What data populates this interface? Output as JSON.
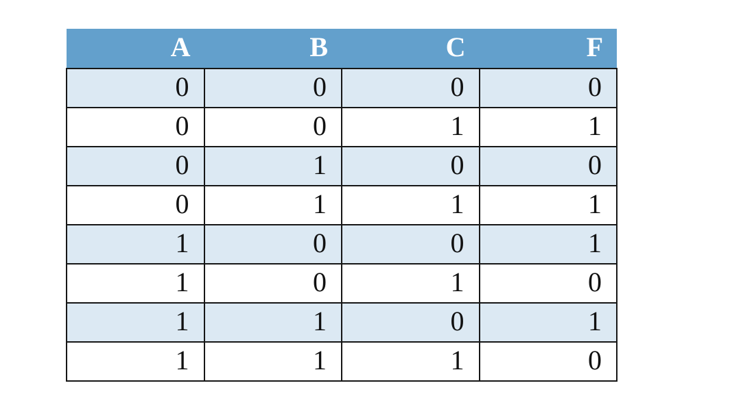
{
  "table": {
    "name": "truth-table",
    "columns": [
      "A",
      "B",
      "C",
      "F"
    ],
    "rows": [
      [
        "0",
        "0",
        "0",
        "0"
      ],
      [
        "0",
        "0",
        "1",
        "1"
      ],
      [
        "0",
        "1",
        "0",
        "0"
      ],
      [
        "0",
        "1",
        "1",
        "1"
      ],
      [
        "1",
        "0",
        "0",
        "1"
      ],
      [
        "1",
        "0",
        "1",
        "0"
      ],
      [
        "1",
        "1",
        "0",
        "1"
      ],
      [
        "1",
        "1",
        "1",
        "0"
      ]
    ]
  },
  "colors": {
    "header_bg": "#63a0cc",
    "header_text": "#ffffff",
    "row_alt_bg": "#dce9f3",
    "row_bg": "#ffffff",
    "border": "#161616",
    "page_bg": "#ffffff",
    "text": "#111111"
  }
}
